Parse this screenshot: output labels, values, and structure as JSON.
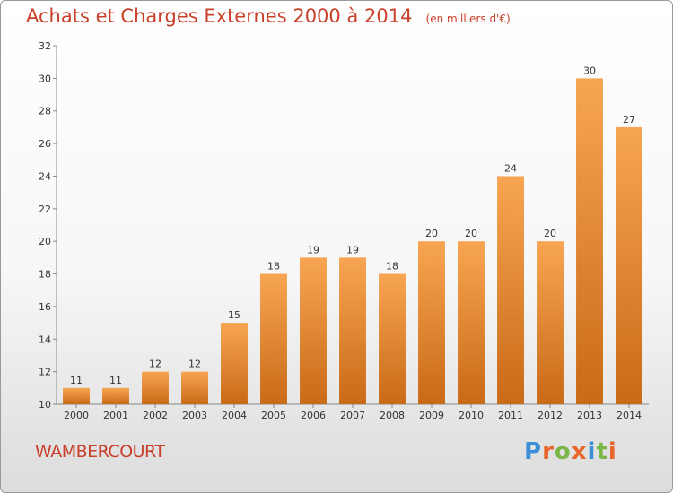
{
  "header": {
    "title": "Achats et Charges Externes 2000 à 2014",
    "subtitle": "(en milliers d'€)"
  },
  "footer": {
    "commune": "WAMBERCOURT",
    "logo": "Proxiti"
  },
  "colors": {
    "title": "#c8402a",
    "bar_top": "#f7a552",
    "bar_bottom": "#c96a16",
    "logo_letters": [
      "#3b8fd6",
      "#e8662a",
      "#7ab648",
      "#e8662a",
      "#3b8fd6",
      "#7ab648",
      "#e8662a"
    ]
  },
  "chart_data": {
    "type": "bar",
    "categories": [
      "2000",
      "2001",
      "2002",
      "2003",
      "2004",
      "2005",
      "2006",
      "2007",
      "2008",
      "2009",
      "2010",
      "2011",
      "2012",
      "2013",
      "2014"
    ],
    "values": [
      11,
      11,
      12,
      12,
      15,
      18,
      19,
      19,
      18,
      20,
      20,
      24,
      20,
      30,
      27
    ],
    "title": "Achats et Charges Externes 2000 à 2014",
    "xlabel": "",
    "ylabel": "",
    "ylim": [
      10,
      32
    ],
    "yticks": [
      10,
      12,
      14,
      16,
      18,
      20,
      22,
      24,
      26,
      28,
      30,
      32
    ],
    "grid": false,
    "data_labels": true
  }
}
